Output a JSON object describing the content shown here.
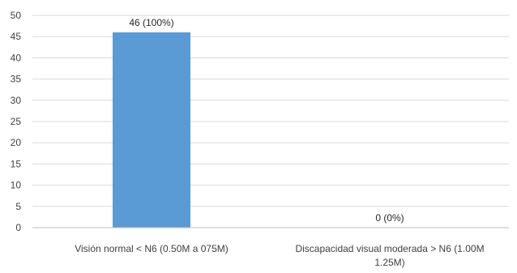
{
  "chart_data": {
    "type": "bar",
    "categories": [
      [
        "Visión normal < N6 (0.50M a 075M)"
      ],
      [
        "Discapacidad visual moderada > N6 (1.00M",
        "1.25M)"
      ]
    ],
    "values": [
      46,
      0
    ],
    "data_labels": [
      "46 (100%)",
      "0 (0%)"
    ],
    "y_ticks": [
      "0",
      "5",
      "10",
      "15",
      "20",
      "25",
      "30",
      "35",
      "40",
      "45",
      "50"
    ],
    "ylim": [
      0,
      50
    ],
    "grid": true,
    "legend": "none",
    "colors": {
      "bar": "#5b9bd5",
      "grid": "#d9d9d9",
      "axis": "#bfbfbf",
      "text": "#404040"
    }
  }
}
